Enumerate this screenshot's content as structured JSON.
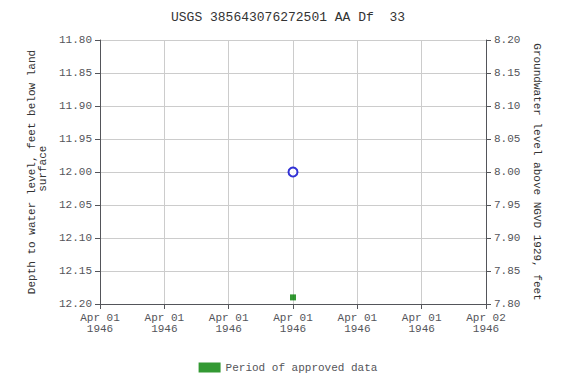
{
  "chart_data": {
    "type": "scatter",
    "title": "USGS 385643076272501 AA Df  33",
    "y_label": "Depth to water level, feet below land\n surface",
    "y2_label": "Groundwater level above NGVD 1929, feet",
    "categories": [
      "Apr 01\n1946",
      "Apr 01\n1946",
      "Apr 01\n1946",
      "Apr 01\n1946",
      "Apr 01\n1946",
      "Apr 01\n1946",
      "Apr 02\n1946"
    ],
    "series": [
      {
        "color": "#0000cc",
        "marker": "circle",
        "values": [
          null,
          null,
          null,
          12.0,
          null,
          null,
          null
        ]
      },
      {
        "name": "Period of approved data",
        "color": "#008000",
        "marker": "square",
        "values": [
          null,
          null,
          null,
          12.19,
          null,
          null,
          null
        ]
      }
    ],
    "ylim": [
      12.2,
      11.8
    ],
    "yticks": [
      {
        "value": 11.8,
        "label": "11.80"
      },
      11.85,
      {
        "value": 11.9,
        "label": "11.90"
      },
      11.95,
      {
        "value": 12,
        "label": "12.00"
      },
      12.05,
      {
        "value": 12.1,
        "label": "12.10"
      },
      12.15,
      {
        "value": 12.2,
        "label": "12.20"
      }
    ],
    "y2lim": [
      7.8,
      8.2
    ],
    "y2ticks": [
      {
        "value": 8.2,
        "label": "8.20"
      },
      8.15,
      {
        "value": 8.1,
        "label": "8.10"
      },
      8.05,
      {
        "value": 8,
        "label": "8.00"
      },
      7.95,
      {
        "value": 7.9,
        "label": "7.90"
      },
      7.85,
      {
        "value": 7.8,
        "label": "7.80"
      }
    ],
    "grid": true,
    "legend": "bottom"
  }
}
